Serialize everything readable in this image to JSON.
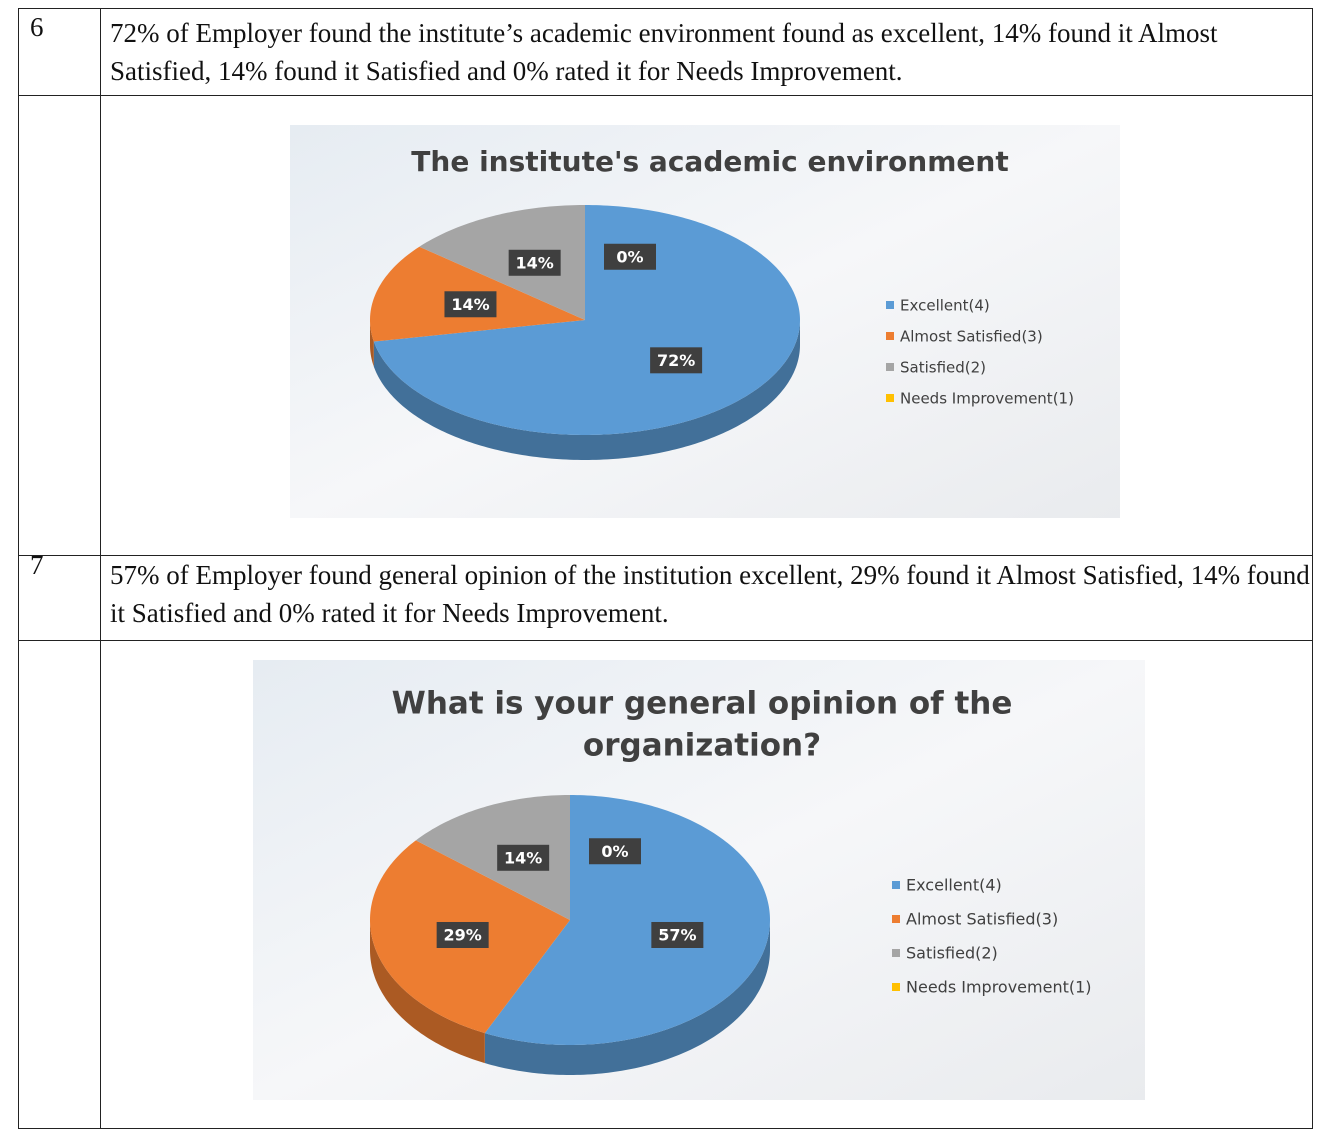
{
  "table": {
    "rows": [
      {
        "number": "6",
        "text": "72% of Employer found the institute’s academic environment found as excellent, 14% found it Almost Satisfied, 14% found it Satisfied and 0% rated it for Needs Improvement."
      },
      {
        "chart": {
          "type": "pie",
          "title": [
            "The institute's academic environment"
          ],
          "categories": [
            "Excellent(4)",
            "Almost Satisfied(3)",
            "Satisfied(2)",
            "Needs Improvement(1)"
          ],
          "values": [
            72,
            14,
            14,
            0
          ],
          "value_labels": [
            "72%",
            "14%",
            "14%",
            "0%"
          ],
          "colors": [
            "#5b9bd5",
            "#ed7d31",
            "#a5a5a5",
            "#ffc000"
          ],
          "legend": "right"
        }
      },
      {
        "number": "7",
        "text": "57% of Employer found general opinion of the institution excellent, 29% found it Almost Satisfied, 14% found it Satisfied and 0% rated it for Needs Improvement."
      },
      {
        "chart": {
          "type": "pie",
          "title": [
            "What is your general opinion of the",
            "organization?"
          ],
          "categories": [
            "Excellent(4)",
            "Almost Satisfied(3)",
            "Satisfied(2)",
            "Needs Improvement(1)"
          ],
          "values": [
            57,
            29,
            14,
            0
          ],
          "value_labels": [
            "57%",
            "29%",
            "14%",
            "0%"
          ],
          "colors": [
            "#5b9bd5",
            "#ed7d31",
            "#a5a5a5",
            "#ffc000"
          ],
          "legend": "right"
        }
      }
    ]
  }
}
